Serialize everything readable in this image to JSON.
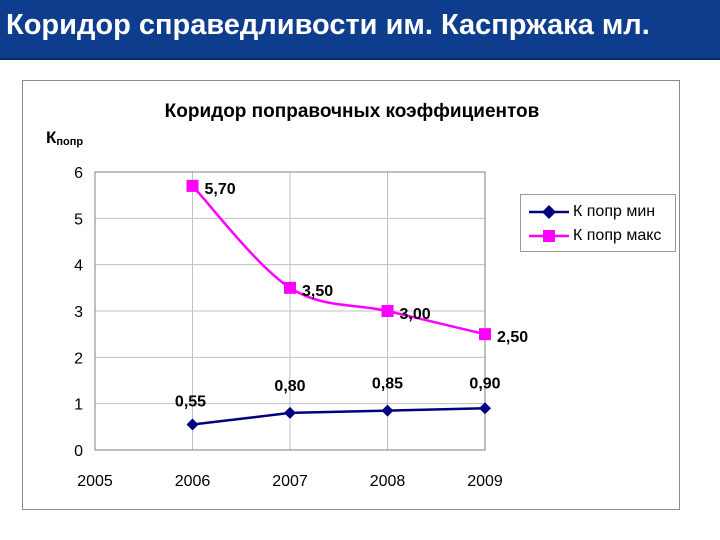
{
  "banner": {
    "title": "Коридор справедливости им. Каспржака мл."
  },
  "colors": {
    "banner_bg": "#0d3d8c",
    "series_min": "#000080",
    "series_max": "#ff00ff",
    "grid": "#c0c0c0"
  },
  "chart_data": {
    "type": "line",
    "title": "Коридор поправочных коэффициентов",
    "ylabel_main": "К",
    "ylabel_sub": "попр",
    "xlabel": "",
    "xlim": [
      2005,
      2009
    ],
    "ylim": [
      0,
      6
    ],
    "x_ticks": [
      "2005",
      "2006",
      "2007",
      "2008",
      "2009"
    ],
    "y_ticks": [
      "0",
      "1",
      "2",
      "3",
      "4",
      "5",
      "6"
    ],
    "grid": true,
    "legend_position": "right",
    "series": [
      {
        "name": "К попр мин",
        "x": [
          2006,
          2007,
          2008,
          2009
        ],
        "values": [
          0.55,
          0.8,
          0.85,
          0.9
        ],
        "labels": [
          "0,55",
          "0,80",
          "0,85",
          "0,90"
        ],
        "marker": "diamond",
        "color": "#000080"
      },
      {
        "name": "К попр макс",
        "x": [
          2006,
          2007,
          2008,
          2009
        ],
        "values": [
          5.7,
          3.5,
          3.0,
          2.5
        ],
        "labels": [
          "5,70",
          "3,50",
          "3,00",
          "2,50"
        ],
        "marker": "square",
        "color": "#ff00ff"
      }
    ]
  }
}
